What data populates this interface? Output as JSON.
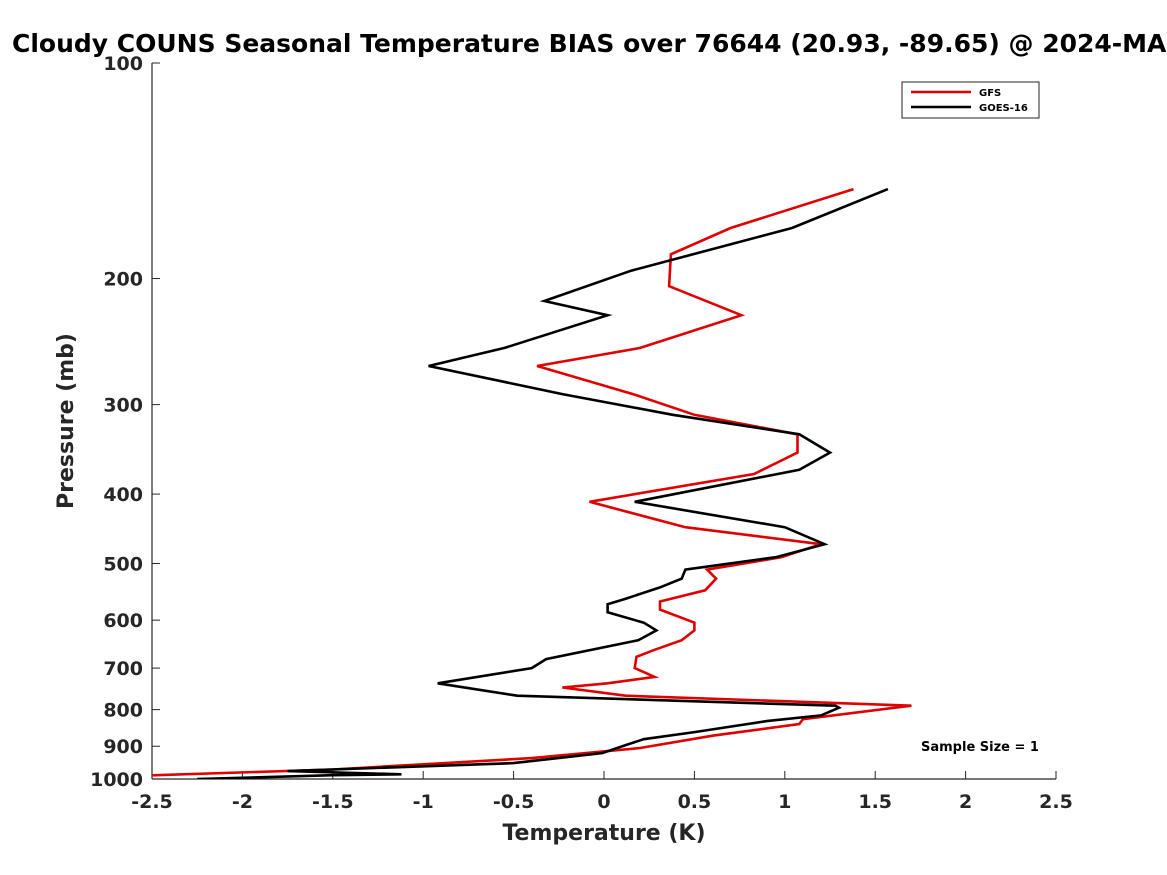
{
  "chart_data": {
    "type": "line",
    "title": "Cloudy COUNS Seasonal Temperature BIAS over 76644 (20.93, -89.65) @ 2024-MA",
    "xlabel": "Temperature (K)",
    "ylabel": "Pressure (mb)",
    "xlim": [
      -2.5,
      2.5
    ],
    "ylim": [
      100,
      1000
    ],
    "y_scale": "log",
    "y_reversed": true,
    "x_ticks": [
      -2.5,
      -2,
      -1.5,
      -1,
      -0.5,
      0,
      0.5,
      1,
      1.5,
      2,
      2.5
    ],
    "x_tick_labels": [
      "-2.5",
      "-2",
      "-1.5",
      "-1",
      "-0.5",
      "0",
      "0.5",
      "1",
      "1.5",
      "2",
      "2.5"
    ],
    "y_ticks": [
      100,
      200,
      300,
      400,
      500,
      600,
      700,
      800,
      900,
      1000
    ],
    "y_tick_labels": [
      "100",
      "200",
      "300",
      "400",
      "500",
      "600",
      "700",
      "800",
      "900",
      "1000"
    ],
    "legend_position": "top-right",
    "annotation": "Sample Size = 1",
    "series": [
      {
        "name": "GFS",
        "color": "#e00000",
        "points": [
          [
            1.38,
            150
          ],
          [
            0.7,
            170
          ],
          [
            0.37,
            185
          ],
          [
            0.36,
            205
          ],
          [
            0.76,
            225
          ],
          [
            0.2,
            250
          ],
          [
            -0.37,
            265
          ],
          [
            0.16,
            290
          ],
          [
            0.5,
            310
          ],
          [
            1.07,
            330
          ],
          [
            1.07,
            350
          ],
          [
            0.83,
            375
          ],
          [
            -0.08,
            410
          ],
          [
            0.45,
            445
          ],
          [
            1.2,
            470
          ],
          [
            0.98,
            490
          ],
          [
            0.57,
            510
          ],
          [
            0.62,
            525
          ],
          [
            0.56,
            545
          ],
          [
            0.31,
            565
          ],
          [
            0.31,
            580
          ],
          [
            0.5,
            605
          ],
          [
            0.5,
            620
          ],
          [
            0.43,
            640
          ],
          [
            0.28,
            660
          ],
          [
            0.18,
            675
          ],
          [
            0.17,
            700
          ],
          [
            0.28,
            720
          ],
          [
            0.02,
            735
          ],
          [
            -0.23,
            745
          ],
          [
            0.12,
            765
          ],
          [
            1.7,
            790
          ],
          [
            1.1,
            825
          ],
          [
            1.08,
            838
          ],
          [
            0.6,
            870
          ],
          [
            0.2,
            905
          ],
          [
            -0.4,
            935
          ],
          [
            -1.5,
            970
          ],
          [
            -2.6,
            990
          ]
        ]
      },
      {
        "name": "GOES-16",
        "color": "#000000",
        "points": [
          [
            1.57,
            150
          ],
          [
            1.04,
            170
          ],
          [
            0.15,
            195
          ],
          [
            -0.33,
            215
          ],
          [
            0.02,
            225
          ],
          [
            -0.55,
            250
          ],
          [
            -0.97,
            265
          ],
          [
            -0.23,
            290
          ],
          [
            0.38,
            310
          ],
          [
            1.08,
            330
          ],
          [
            1.25,
            350
          ],
          [
            1.08,
            370
          ],
          [
            0.17,
            410
          ],
          [
            1.0,
            445
          ],
          [
            1.22,
            470
          ],
          [
            0.95,
            490
          ],
          [
            0.45,
            510
          ],
          [
            0.43,
            525
          ],
          [
            0.31,
            540
          ],
          [
            0.12,
            560
          ],
          [
            0.02,
            570
          ],
          [
            0.02,
            585
          ],
          [
            0.22,
            605
          ],
          [
            0.29,
            620
          ],
          [
            0.19,
            640
          ],
          [
            -0.32,
            680
          ],
          [
            -0.4,
            700
          ],
          [
            -0.92,
            735
          ],
          [
            -0.48,
            765
          ],
          [
            1.28,
            790
          ],
          [
            1.3,
            795
          ],
          [
            1.2,
            815
          ],
          [
            0.9,
            830
          ],
          [
            0.5,
            860
          ],
          [
            0.22,
            880
          ],
          [
            0.13,
            895
          ],
          [
            -0.01,
            920
          ],
          [
            -0.5,
            950
          ],
          [
            -1.75,
            975
          ],
          [
            -1.12,
            985
          ],
          [
            -1.5,
            988
          ],
          [
            -2.25,
            1000
          ]
        ]
      }
    ]
  }
}
